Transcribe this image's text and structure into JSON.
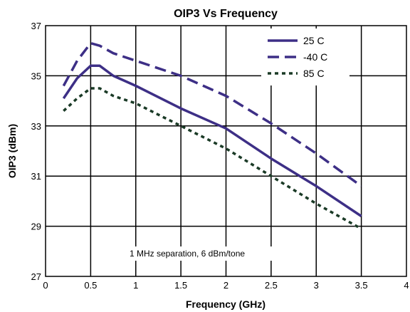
{
  "chart_data": {
    "type": "line",
    "title": "OIP3 Vs Frequency",
    "xlabel": "Frequency (GHz)",
    "ylabel": "OIP3 (dBm)",
    "xlim": [
      0,
      4
    ],
    "ylim": [
      27,
      37
    ],
    "x_ticks": [
      "0",
      "0.5",
      "1",
      "1.5",
      "2",
      "2.5",
      "3",
      "3.5",
      "4"
    ],
    "y_ticks": [
      "27",
      "29",
      "31",
      "33",
      "35",
      "37"
    ],
    "grid": true,
    "legend_position": "top-right",
    "annotation": "1 MHz separation, 6 dBm/tone",
    "series": [
      {
        "name": "25 C",
        "color": "#3d2f86",
        "style": "solid",
        "x": [
          0.2,
          0.35,
          0.5,
          0.6,
          0.75,
          1.0,
          1.5,
          2.0,
          2.5,
          3.0,
          3.5
        ],
        "y": [
          34.1,
          34.9,
          35.4,
          35.4,
          35.0,
          34.6,
          33.7,
          32.9,
          31.7,
          30.6,
          29.4
        ]
      },
      {
        "name": "-40 C",
        "color": "#3d2f86",
        "style": "dashed",
        "x": [
          0.2,
          0.35,
          0.5,
          0.6,
          0.75,
          1.0,
          1.5,
          2.0,
          2.5,
          3.0,
          3.5
        ],
        "y": [
          34.6,
          35.6,
          36.3,
          36.2,
          35.9,
          35.6,
          35.0,
          34.2,
          33.1,
          31.9,
          30.6
        ]
      },
      {
        "name": "85 C",
        "color": "#1a3a26",
        "style": "dotted",
        "x": [
          0.2,
          0.35,
          0.5,
          0.6,
          0.75,
          1.0,
          1.5,
          2.0,
          2.5,
          3.0,
          3.5
        ],
        "y": [
          33.6,
          34.1,
          34.5,
          34.5,
          34.2,
          33.9,
          33.0,
          32.1,
          31.0,
          29.9,
          28.9
        ]
      }
    ]
  }
}
